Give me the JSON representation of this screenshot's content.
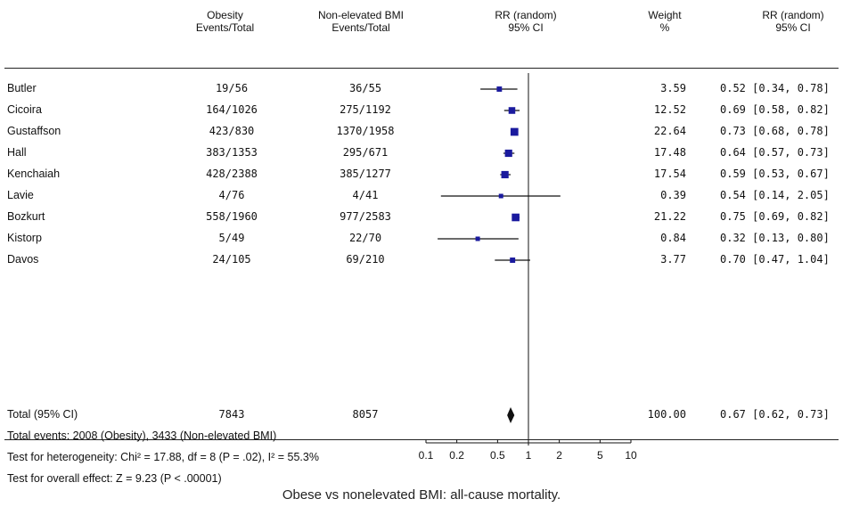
{
  "header": {
    "obesity": {
      "line1": "Obesity",
      "line2": "Events/Total"
    },
    "nonelevated": {
      "line1": "Non-elevated BMI",
      "line2": "Events/Total"
    },
    "rr_plot": {
      "line1": "RR (random)",
      "line2": "95% CI"
    },
    "weight": {
      "line1": "Weight",
      "line2": "%"
    },
    "rr_value": {
      "line1": "RR (random)",
      "line2": "95% CI"
    }
  },
  "summary": {
    "label": "Total (95% CI)",
    "obesity_total": "7843",
    "nonelevated_total": "8057",
    "weight": "100.00",
    "ci_text": "0.67 [0.62, 0.73]",
    "total_events": "Total events: 2008 (Obesity), 3433 (Non-elevated BMI)",
    "heterogeneity": "Test for heterogeneity: Chi² = 17.88, df = 8 (P = .02), I² = 55.3%",
    "overall_effect": "Test for overall effect: Z = 9.23 (P < .00001)"
  },
  "caption": "Obese vs nonelevated BMI: all-cause mortality.",
  "chart_data": {
    "type": "forest",
    "x_scale": "log",
    "xlim": [
      0.1,
      10
    ],
    "x_ticks": [
      "0.1",
      "0.2",
      "0.5",
      "1",
      "2",
      "5",
      "10"
    ],
    "x_tick_values": [
      0.1,
      0.2,
      0.5,
      1,
      2,
      5,
      10
    ],
    "reference_line": 1,
    "studies": [
      {
        "name": "Butler",
        "obesity": "19/56",
        "nonelevated": "36/55",
        "weight": "3.59",
        "ci_text": "0.52 [0.34, 0.78]",
        "rr": 0.52,
        "lo": 0.34,
        "hi": 0.78
      },
      {
        "name": "Cicoira",
        "obesity": "164/1026",
        "nonelevated": "275/1192",
        "weight": "12.52",
        "ci_text": "0.69 [0.58, 0.82]",
        "rr": 0.69,
        "lo": 0.58,
        "hi": 0.82
      },
      {
        "name": "Gustaffson",
        "obesity": "423/830",
        "nonelevated": "1370/1958",
        "weight": "22.64",
        "ci_text": "0.73 [0.68, 0.78]",
        "rr": 0.73,
        "lo": 0.68,
        "hi": 0.78
      },
      {
        "name": "Hall",
        "obesity": "383/1353",
        "nonelevated": "295/671",
        "weight": "17.48",
        "ci_text": "0.64 [0.57, 0.73]",
        "rr": 0.64,
        "lo": 0.57,
        "hi": 0.73
      },
      {
        "name": "Kenchaiah",
        "obesity": "428/2388",
        "nonelevated": "385/1277",
        "weight": "17.54",
        "ci_text": "0.59 [0.53, 0.67]",
        "rr": 0.59,
        "lo": 0.53,
        "hi": 0.67
      },
      {
        "name": "Lavie",
        "obesity": "4/76",
        "nonelevated": "4/41",
        "weight": "0.39",
        "ci_text": "0.54 [0.14, 2.05]",
        "rr": 0.54,
        "lo": 0.14,
        "hi": 2.05
      },
      {
        "name": "Bozkurt",
        "obesity": "558/1960",
        "nonelevated": "977/2583",
        "weight": "21.22",
        "ci_text": "0.75 [0.69, 0.82]",
        "rr": 0.75,
        "lo": 0.69,
        "hi": 0.82
      },
      {
        "name": "Kistorp",
        "obesity": "5/49",
        "nonelevated": "22/70",
        "weight": "0.84",
        "ci_text": "0.32 [0.13, 0.80]",
        "rr": 0.32,
        "lo": 0.13,
        "hi": 0.8
      },
      {
        "name": "Davos",
        "obesity": "24/105",
        "nonelevated": "69/210",
        "weight": "3.77",
        "ci_text": "0.70 [0.47, 1.04]",
        "rr": 0.7,
        "lo": 0.47,
        "hi": 1.04
      }
    ],
    "pooled": {
      "rr": 0.67,
      "lo": 0.62,
      "hi": 0.73
    },
    "colors": {
      "marker": "#1a1a9e",
      "diamond": "#111111",
      "line": "#111111"
    }
  }
}
